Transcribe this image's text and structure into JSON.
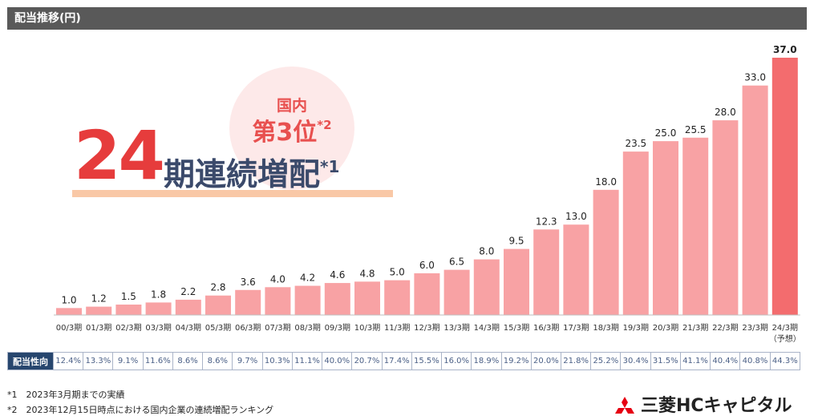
{
  "header": {
    "title": "配当推移(円)"
  },
  "badge": {
    "line1": "国内",
    "line2": "第3位",
    "note": "*2"
  },
  "streak": {
    "number": "24",
    "text": "期連続増配",
    "note": "*1"
  },
  "chart_data": {
    "type": "bar",
    "title": "配当推移(円)",
    "categories": [
      "00/3期",
      "01/3期",
      "02/3期",
      "03/3期",
      "04/3期",
      "05/3期",
      "06/3期",
      "07/3期",
      "08/3期",
      "09/3期",
      "10/3期",
      "11/3期",
      "12/3期",
      "13/3期",
      "14/3期",
      "15/3期",
      "16/3期",
      "17/3期",
      "18/3期",
      "19/3期",
      "20/3期",
      "21/3期",
      "22/3期",
      "23/3期",
      "24/3期"
    ],
    "category_sublabels": {
      "24/3期": "（予想）"
    },
    "values": [
      1.0,
      1.2,
      1.5,
      1.8,
      2.2,
      2.8,
      3.6,
      4.0,
      4.2,
      4.6,
      4.8,
      5.0,
      6.0,
      6.5,
      8.0,
      9.5,
      12.3,
      13.0,
      18.0,
      23.5,
      25.0,
      25.5,
      28.0,
      33.0,
      37.0
    ],
    "value_labels": [
      "1.0",
      "1.2",
      "1.5",
      "1.8",
      "2.2",
      "2.8",
      "3.6",
      "4.0",
      "4.2",
      "4.6",
      "4.8",
      "5.0",
      "6.0",
      "6.5",
      "8.0",
      "9.5",
      "12.3",
      "13.0",
      "18.0",
      "23.5",
      "25.0",
      "25.5",
      "28.0",
      "33.0",
      "37.0"
    ],
    "ylim": [
      0,
      37.0
    ],
    "grid": false,
    "colors": {
      "bar": "#f8a2a4",
      "bar_highlight": "#f36c6e"
    }
  },
  "payout_ratio": {
    "label": "配当性向",
    "values": [
      "12.4%",
      "13.3%",
      "9.1%",
      "11.6%",
      "8.6%",
      "8.6%",
      "9.7%",
      "10.3%",
      "11.1%",
      "40.0%",
      "20.7%",
      "17.4%",
      "15.5%",
      "16.0%",
      "18.9%",
      "19.2%",
      "20.0%",
      "21.8%",
      "25.2%",
      "30.4%",
      "31.5%",
      "41.1%",
      "40.4%",
      "40.8%",
      "44.3%"
    ]
  },
  "footnotes": [
    "*1　2023年3月期までの実績",
    "*2　2023年12月15日時点における国内企業の連続増配ランキング"
  ],
  "logo": {
    "text": "三菱HCキャピタル",
    "icon": "three-diamonds-icon"
  }
}
